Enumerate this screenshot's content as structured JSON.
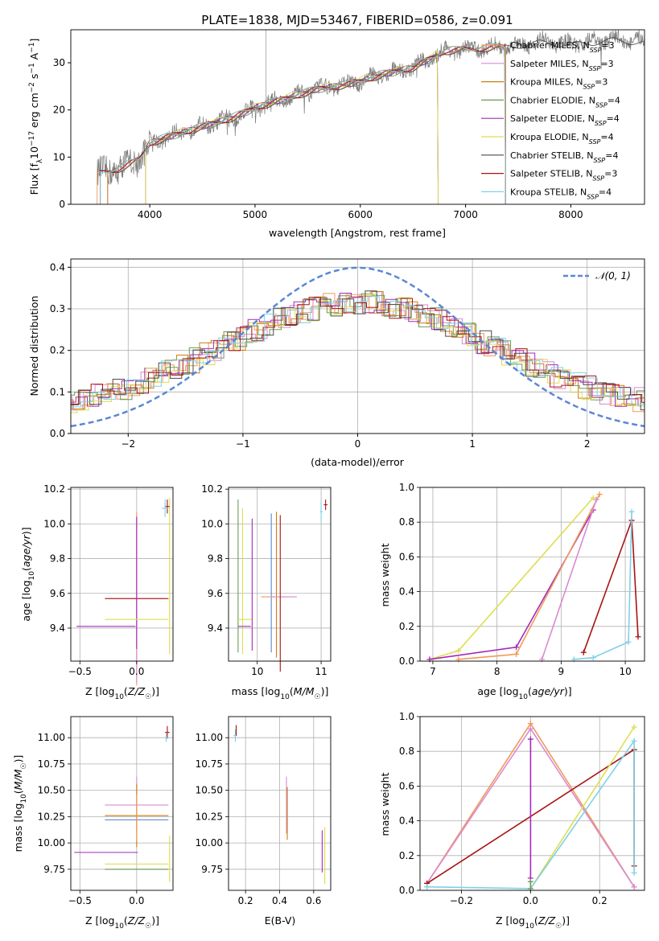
{
  "figure_title": "PLATE=1838, MJD=53467, FIBERID=0586, z=0.091",
  "colors": [
    "#f19a59",
    "#d98bd0",
    "#c97f12",
    "#6a9a58",
    "#a42bb8",
    "#dede52",
    "#4a4a4a",
    "#a81313",
    "#7fd0e8"
  ],
  "legend_entries": [
    "Chabrier MILES, N_SSP=3",
    "Salpeter MILES, N_SSP=3",
    "Kroupa MILES, N_SSP=3",
    "Chabrier ELODIE, N_SSP=4",
    "Salpeter ELODIE, N_SSP=4",
    "Kroupa ELODIE, N_SSP=4",
    "Chabrier STELIB, N_SSP=4",
    "Salpeter STELIB, N_SSP=3",
    "Kroupa STELIB, N_SSP=4"
  ],
  "chart_data": [
    {
      "id": "spectrum",
      "type": "line",
      "xlabel": "wavelength [Angstrom, rest frame]",
      "ylabel": "Flux [f_λ 10^-17 erg cm^-2 s^-1 A^-1]",
      "xlim": [
        3250,
        8700
      ],
      "ylim": [
        0,
        37
      ],
      "xticks": [
        4000,
        5000,
        6000,
        7000,
        8000
      ],
      "yticks": [
        0,
        10,
        20,
        30
      ],
      "grid": false,
      "legend_position": "right",
      "continuum_points": [
        [
          3500,
          6.5
        ],
        [
          3700,
          7.5
        ],
        [
          3900,
          9.5
        ],
        [
          4000,
          13
        ],
        [
          4200,
          14.5
        ],
        [
          4500,
          16.5
        ],
        [
          4800,
          18.5
        ],
        [
          5000,
          20.5
        ],
        [
          5300,
          22.5
        ],
        [
          5600,
          24.5
        ],
        [
          5900,
          25.5
        ],
        [
          6200,
          27.5
        ],
        [
          6500,
          29
        ],
        [
          6800,
          32.5
        ],
        [
          7100,
          33
        ],
        [
          7400,
          33.5
        ],
        [
          7700,
          34.5
        ],
        [
          8000,
          34
        ],
        [
          8400,
          35
        ],
        [
          8700,
          34.5
        ]
      ]
    },
    {
      "id": "residuals",
      "type": "line",
      "xlabel": "(data-model)/error",
      "ylabel": "Normed distribution",
      "xlim": [
        -2.5,
        2.5
      ],
      "ylim": [
        0,
        0.42
      ],
      "xticks": [
        -2,
        -1,
        0,
        1,
        2
      ],
      "yticks": [
        0.0,
        0.1,
        0.2,
        0.3,
        0.4
      ],
      "grid": true,
      "legend_position": "upper right",
      "legend_label": "N(0,1)",
      "series": [
        {
          "name": "N(0,1)",
          "mean": 0,
          "sigma": 1,
          "style": "dashed",
          "color": "#5b87d6"
        }
      ]
    },
    {
      "id": "age-vs-Z",
      "type": "scatter",
      "xlabel": "Z [log10(Z/Z☉)]",
      "ylabel": "age [log10(age/yr)]",
      "xlim": [
        -0.58,
        0.32
      ],
      "ylim": [
        9.21,
        10.21
      ],
      "xticks": [
        -0.5,
        0.0
      ],
      "yticks": [
        9.4,
        9.6,
        9.8,
        10.0,
        10.2
      ],
      "grid": true
    },
    {
      "id": "age-vs-mass",
      "type": "scatter",
      "xlabel": "mass [log10(M/M☉)]",
      "xlim": [
        9.55,
        11.15
      ],
      "ylim": [
        9.21,
        10.21
      ],
      "xticks": [
        10,
        11
      ],
      "yticks": [
        9.4,
        9.6,
        9.8,
        10.0,
        10.2
      ],
      "grid": true
    },
    {
      "id": "weight-vs-age",
      "type": "line",
      "xlabel": "age [log10(age/yr)]",
      "ylabel": "mass weight",
      "xlim": [
        6.8,
        10.3
      ],
      "ylim": [
        0,
        1
      ],
      "xticks": [
        7,
        8,
        9,
        10
      ],
      "yticks": [
        0.0,
        0.2,
        0.4,
        0.6,
        0.8,
        1.0
      ],
      "grid": true,
      "series": [
        {
          "color": "#dede52",
          "x": [
            6.95,
            7.4,
            9.5
          ],
          "y": [
            0.01,
            0.06,
            0.94
          ]
        },
        {
          "color": "#a42bb8",
          "x": [
            6.95,
            8.3,
            9.5
          ],
          "y": [
            0.01,
            0.08,
            0.87
          ]
        },
        {
          "color": "#f19a59",
          "x": [
            7.4,
            8.3,
            9.6
          ],
          "y": [
            0.01,
            0.04,
            0.96
          ]
        },
        {
          "color": "#d98bd0",
          "x": [
            8.7,
            9.55
          ],
          "y": [
            0.01,
            0.93
          ]
        },
        {
          "color": "#a81313",
          "x": [
            9.35,
            10.1,
            10.2
          ],
          "y": [
            0.05,
            0.81,
            0.14
          ]
        },
        {
          "color": "#7fd0e8",
          "x": [
            9.2,
            9.5,
            10.05,
            10.1
          ],
          "y": [
            0.01,
            0.02,
            0.11,
            0.86
          ]
        }
      ]
    },
    {
      "id": "mass-vs-Z",
      "type": "scatter",
      "xlabel": "Z [log10(Z/Z☉)]",
      "ylabel": "mass [log10(M/M☉)]",
      "xlim": [
        -0.58,
        0.32
      ],
      "ylim": [
        9.55,
        11.2
      ],
      "xticks": [
        -0.5,
        0.0
      ],
      "yticks": [
        9.75,
        10.0,
        10.25,
        10.5,
        10.75,
        11.0
      ],
      "grid": true
    },
    {
      "id": "mass-vs-EBV",
      "type": "scatter",
      "xlabel": "E(B-V)",
      "xlim": [
        0.1,
        0.7
      ],
      "ylim": [
        9.55,
        11.2
      ],
      "xticks": [
        0.2,
        0.4,
        0.6
      ],
      "yticks": [
        9.75,
        10.0,
        10.25,
        10.5,
        10.75,
        11.0
      ],
      "grid": true
    },
    {
      "id": "weight-vs-Z",
      "type": "line",
      "xlabel": "Z [log10(Z/Z☉)]",
      "ylabel": "mass weight",
      "xlim": [
        -0.32,
        0.33
      ],
      "ylim": [
        0,
        1
      ],
      "xticks": [
        -0.2,
        0.0,
        0.2
      ],
      "yticks": [
        0.0,
        0.2,
        0.4,
        0.6,
        0.8,
        1.0
      ],
      "grid": true,
      "series": [
        {
          "color": "#f19a59",
          "x": [
            -0.3,
            0.0,
            0.3
          ],
          "y": [
            0.04,
            0.96,
            0.02
          ]
        },
        {
          "color": "#d98bd0",
          "x": [
            -0.3,
            0.0,
            0.3
          ],
          "y": [
            0.04,
            0.93,
            0.02
          ]
        },
        {
          "color": "#a81313",
          "x": [
            -0.3,
            0.3,
            0.3
          ],
          "y": [
            0.04,
            0.81,
            0.14
          ]
        },
        {
          "color": "#a42bb8",
          "x": [
            0.0,
            0.0
          ],
          "y": [
            0.07,
            0.87
          ]
        },
        {
          "color": "#dede52",
          "x": [
            0.0,
            0.3
          ],
          "y": [
            0.01,
            0.94
          ]
        },
        {
          "color": "#7fd0e8",
          "x": [
            -0.3,
            0.0,
            0.3,
            0.3
          ],
          "y": [
            0.02,
            0.01,
            0.86,
            0.1
          ]
        },
        {
          "color": "#6a9a58",
          "x": [
            0.0,
            0.0
          ],
          "y": [
            0.01,
            0.05
          ]
        }
      ]
    }
  ]
}
